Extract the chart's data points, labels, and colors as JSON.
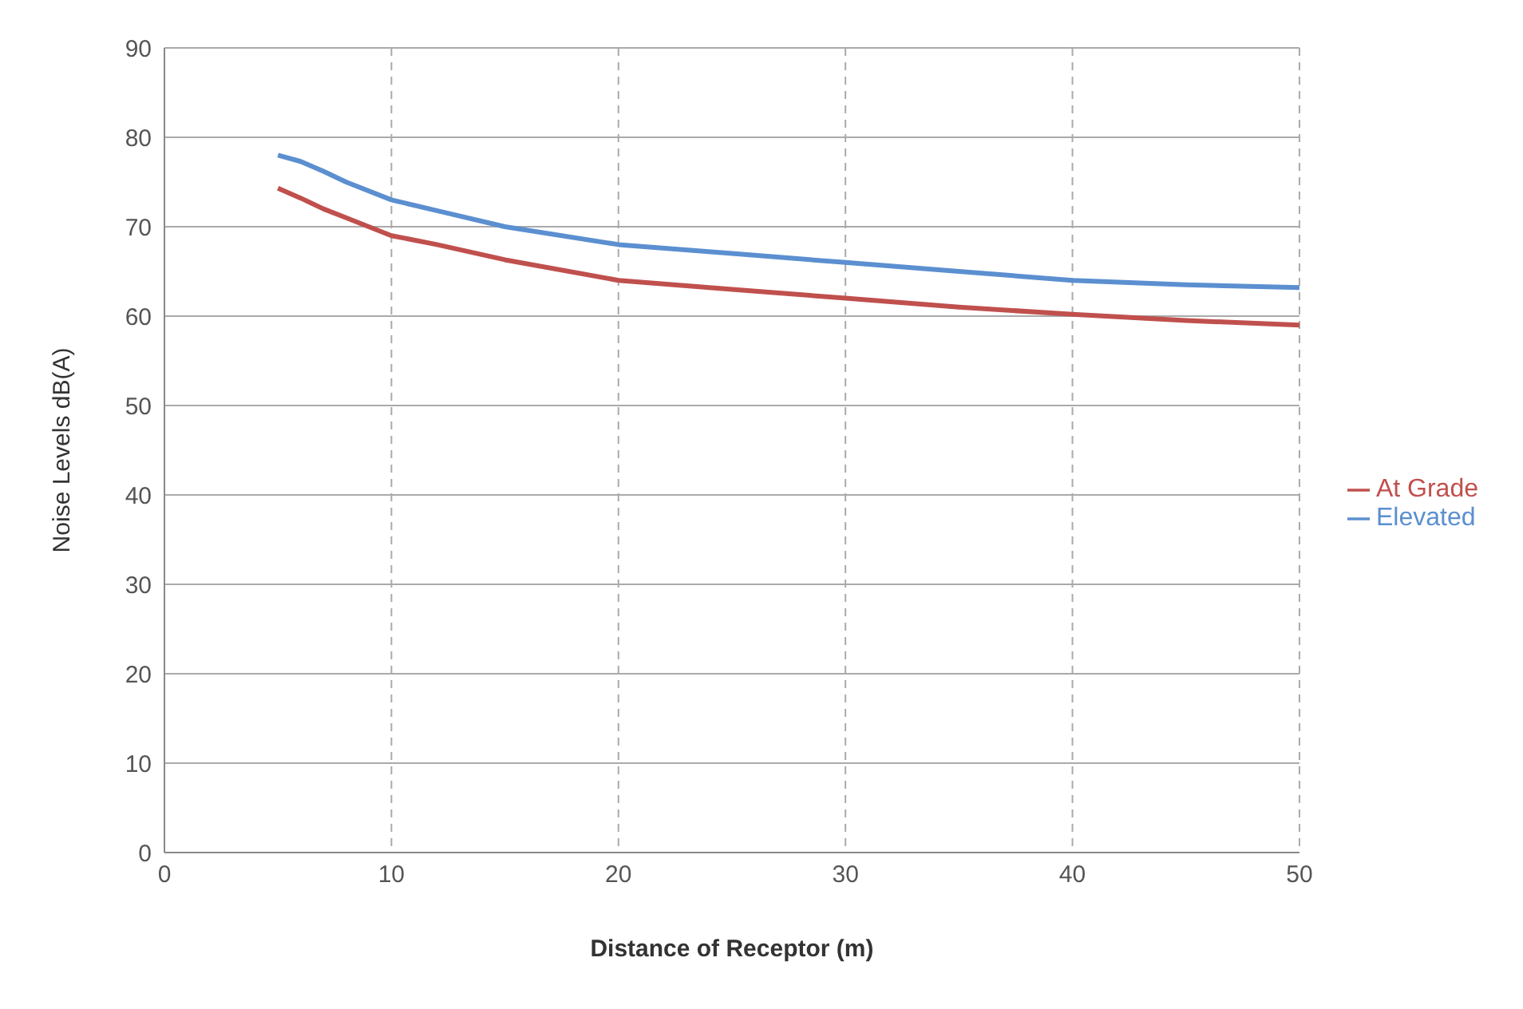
{
  "chart_data": {
    "type": "line",
    "xlabel": "Distance of Receptor (m)",
    "ylabel": "Noise Levels dB(A)",
    "x": [
      5,
      6,
      7,
      8,
      10,
      12,
      15,
      20,
      25,
      30,
      35,
      40,
      45,
      50
    ],
    "series": [
      {
        "name": "Elevated",
        "color": "#5b8fd0",
        "values": [
          78,
          77.3,
          76.2,
          75,
          73,
          71.8,
          70,
          68,
          67,
          66,
          65,
          64,
          63.5,
          63.2
        ]
      },
      {
        "name": "At Grade",
        "color": "#c0504d",
        "values": [
          74.3,
          73.2,
          72,
          71,
          69,
          68,
          66.3,
          64,
          63,
          62,
          61,
          60.2,
          59.5,
          59
        ]
      }
    ],
    "xlim": [
      0,
      50
    ],
    "xticks": [
      0,
      10,
      20,
      30,
      40,
      50
    ],
    "ylim": [
      0,
      90
    ],
    "yticks": [
      0,
      10,
      20,
      30,
      40,
      50,
      60,
      70,
      80,
      90
    ],
    "grid": true,
    "legend": "right",
    "marker": "none",
    "line_style": "solid"
  }
}
